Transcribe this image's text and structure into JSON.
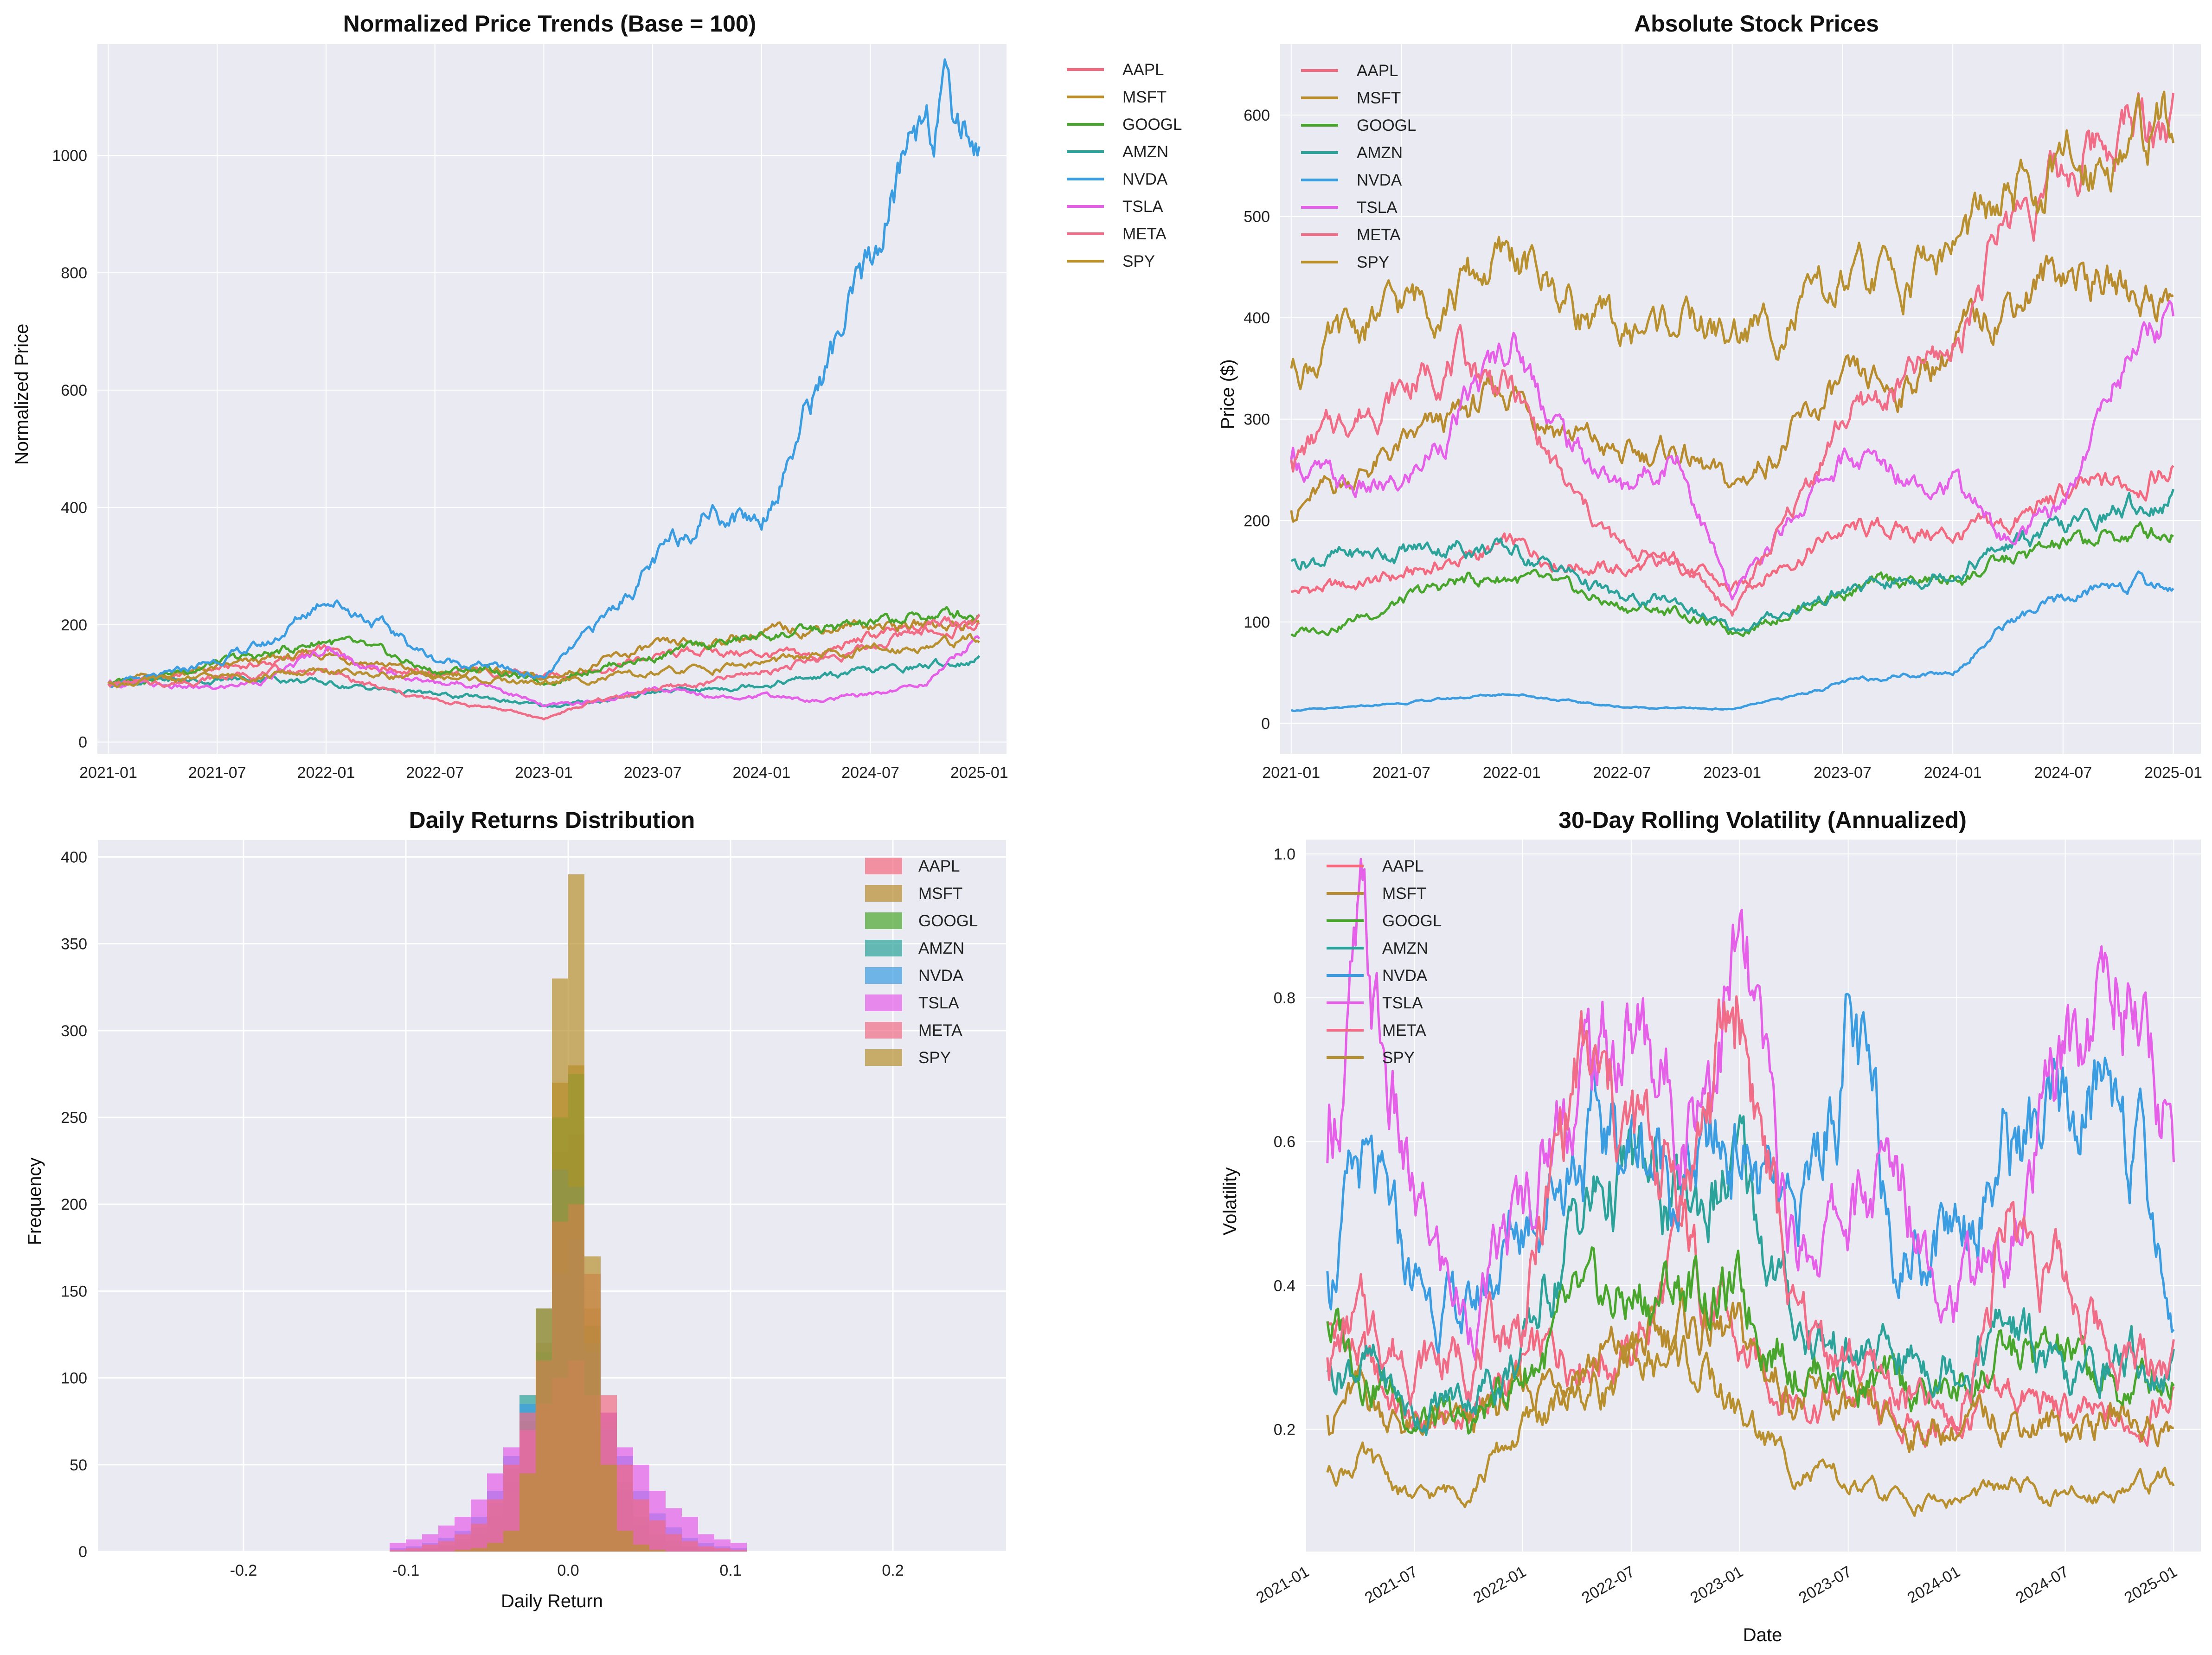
{
  "chart_data": [
    {
      "id": "normalized",
      "type": "line",
      "title": "Normalized Price Trends (Base = 100)",
      "xlabel": "",
      "ylabel": "Normalized Price",
      "x_ticks": [
        "2021-01",
        "2021-07",
        "2022-01",
        "2022-07",
        "2023-01",
        "2023-07",
        "2024-01",
        "2024-07",
        "2025-01"
      ],
      "xlim": [
        -0.1,
        8.25
      ],
      "ylim": [
        -20,
        1190
      ],
      "y_ticks": [
        0,
        200,
        400,
        600,
        800,
        1000
      ],
      "legend": "outside-right",
      "grid": true,
      "x": [
        0,
        0.5,
        1,
        1.5,
        2,
        2.5,
        3,
        3.5,
        4,
        4.5,
        5,
        5.5,
        6,
        6.5,
        7,
        7.5,
        8
      ],
      "series": [
        {
          "name": "AAPL",
          "values": [
            100,
            110,
            125,
            135,
            155,
            130,
            115,
            120,
            110,
            125,
            145,
            155,
            150,
            145,
            180,
            190,
            200
          ]
        },
        {
          "name": "MSFT",
          "values": [
            100,
            115,
            125,
            140,
            150,
            135,
            110,
            125,
            105,
            135,
            160,
            170,
            185,
            195,
            200,
            200,
            205
          ]
        },
        {
          "name": "GOOGL",
          "values": [
            100,
            115,
            135,
            150,
            175,
            150,
            120,
            125,
            100,
            130,
            145,
            165,
            180,
            190,
            200,
            215,
            220
          ]
        },
        {
          "name": "AMZN",
          "values": [
            100,
            105,
            105,
            110,
            100,
            90,
            80,
            75,
            60,
            70,
            85,
            90,
            100,
            110,
            120,
            130,
            140
          ]
        },
        {
          "name": "NVDA",
          "values": [
            100,
            110,
            140,
            170,
            250,
            200,
            140,
            130,
            110,
            200,
            300,
            400,
            380,
            600,
            800,
            1100,
            1030
          ]
        },
        {
          "name": "TSLA",
          "values": [
            100,
            95,
            90,
            110,
            160,
            120,
            100,
            100,
            60,
            70,
            90,
            80,
            80,
            70,
            80,
            100,
            180
          ]
        },
        {
          "name": "META",
          "values": [
            100,
            100,
            110,
            120,
            120,
            90,
            70,
            60,
            40,
            70,
            90,
            100,
            120,
            140,
            160,
            200,
            210
          ]
        },
        {
          "name": "SPY",
          "values": [
            100,
            105,
            110,
            115,
            120,
            115,
            110,
            105,
            100,
            110,
            115,
            125,
            135,
            145,
            155,
            165,
            175
          ]
        }
      ]
    },
    {
      "id": "absolute",
      "type": "line",
      "title": "Absolute Stock Prices",
      "xlabel": "",
      "ylabel": "Price ($)",
      "x_ticks": [
        "2021-01",
        "2021-07",
        "2022-01",
        "2022-07",
        "2023-01",
        "2023-07",
        "2024-01",
        "2024-07",
        "2025-01"
      ],
      "xlim": [
        -0.1,
        8.25
      ],
      "ylim": [
        -30,
        670
      ],
      "y_ticks": [
        0,
        100,
        200,
        300,
        400,
        500,
        600
      ],
      "legend": "top-left",
      "grid": true,
      "x": [
        0,
        0.5,
        1,
        1.5,
        2,
        2.5,
        3,
        3.5,
        4,
        4.5,
        5,
        5.5,
        6,
        6.5,
        7,
        7.5,
        8
      ],
      "series": [
        {
          "name": "AAPL",
          "values": [
            130,
            135,
            145,
            160,
            175,
            160,
            150,
            160,
            130,
            160,
            190,
            190,
            185,
            195,
            225,
            235,
            250
          ]
        },
        {
          "name": "MSFT",
          "values": [
            210,
            240,
            270,
            300,
            330,
            290,
            260,
            270,
            230,
            280,
            330,
            330,
            370,
            420,
            450,
            430,
            420
          ]
        },
        {
          "name": "GOOGL",
          "values": [
            88,
            100,
            120,
            140,
            145,
            130,
            115,
            110,
            90,
            110,
            130,
            140,
            140,
            160,
            175,
            185,
            190
          ]
        },
        {
          "name": "AMZN",
          "values": [
            160,
            165,
            170,
            175,
            170,
            150,
            120,
            120,
            90,
            110,
            130,
            140,
            150,
            175,
            190,
            210,
            220
          ]
        },
        {
          "name": "NVDA",
          "values": [
            13,
            15,
            20,
            25,
            30,
            22,
            16,
            15,
            14,
            25,
            40,
            48,
            50,
            100,
            120,
            140,
            135
          ]
        },
        {
          "name": "TSLA",
          "values": [
            260,
            230,
            230,
            300,
            380,
            280,
            230,
            270,
            120,
            200,
            260,
            250,
            240,
            180,
            210,
            350,
            410
          ]
        },
        {
          "name": "META",
          "values": [
            260,
            300,
            330,
            360,
            330,
            230,
            170,
            160,
            110,
            200,
            300,
            330,
            370,
            500,
            540,
            590,
            600
          ]
        },
        {
          "name": "SPY",
          "values": [
            350,
            380,
            410,
            430,
            460,
            420,
            380,
            400,
            380,
            400,
            430,
            440,
            470,
            510,
            540,
            570,
            590
          ]
        }
      ]
    },
    {
      "id": "returns",
      "type": "bar",
      "title": "Daily Returns Distribution",
      "xlabel": "Daily Return",
      "ylabel": "Frequency",
      "x_ticks": [
        "-0.2",
        "-0.1",
        "0.0",
        "0.1",
        "0.2"
      ],
      "x_tick_values": [
        -0.2,
        -0.1,
        0.0,
        0.1,
        0.2
      ],
      "xlim": [
        -0.29,
        0.27
      ],
      "ylim": [
        0,
        410
      ],
      "y_ticks": [
        0,
        50,
        100,
        150,
        200,
        250,
        300,
        350,
        400
      ],
      "legend": "top-right",
      "grid": true,
      "bin_width": 0.01,
      "bin_centers": [
        -0.105,
        -0.095,
        -0.085,
        -0.075,
        -0.065,
        -0.055,
        -0.045,
        -0.035,
        -0.025,
        -0.015,
        -0.005,
        0.005,
        0.015,
        0.025,
        0.035,
        0.045,
        0.055,
        0.065,
        0.075,
        0.085,
        0.095,
        0.105
      ],
      "series": [
        {
          "name": "AAPL",
          "values": [
            0,
            1,
            2,
            4,
            6,
            12,
            25,
            40,
            70,
            100,
            230,
            240,
            130,
            80,
            40,
            20,
            10,
            5,
            3,
            2,
            1,
            0
          ]
        },
        {
          "name": "MSFT",
          "values": [
            0,
            0,
            1,
            2,
            4,
            8,
            18,
            35,
            75,
            120,
            270,
            280,
            140,
            70,
            30,
            12,
            5,
            3,
            1,
            0,
            0,
            0
          ]
        },
        {
          "name": "GOOGL",
          "values": [
            0,
            1,
            2,
            3,
            5,
            10,
            20,
            40,
            75,
            115,
            250,
            275,
            130,
            75,
            35,
            15,
            7,
            3,
            2,
            1,
            0,
            0
          ]
        },
        {
          "name": "AMZN",
          "values": [
            0,
            1,
            2,
            4,
            7,
            14,
            28,
            48,
            90,
            140,
            220,
            210,
            120,
            70,
            40,
            20,
            10,
            6,
            3,
            2,
            1,
            0
          ]
        },
        {
          "name": "NVDA",
          "values": [
            2,
            3,
            5,
            8,
            12,
            20,
            35,
            55,
            85,
            110,
            160,
            180,
            115,
            80,
            55,
            35,
            22,
            14,
            8,
            5,
            3,
            2
          ]
        },
        {
          "name": "TSLA",
          "values": [
            5,
            7,
            10,
            15,
            20,
            30,
            45,
            60,
            70,
            85,
            100,
            110,
            90,
            80,
            60,
            50,
            35,
            25,
            20,
            10,
            7,
            5
          ]
        },
        {
          "name": "META",
          "values": [
            1,
            2,
            4,
            6,
            10,
            16,
            30,
            50,
            80,
            110,
            190,
            200,
            160,
            90,
            50,
            30,
            18,
            10,
            6,
            3,
            2,
            1
          ]
        },
        {
          "name": "SPY",
          "values": [
            0,
            0,
            0,
            0,
            1,
            2,
            5,
            12,
            45,
            140,
            330,
            390,
            170,
            50,
            12,
            4,
            1,
            0,
            0,
            0,
            0,
            0
          ]
        }
      ]
    },
    {
      "id": "volatility",
      "type": "line",
      "title": "30-Day Rolling Volatility (Annualized)",
      "xlabel": "Date",
      "ylabel": "Volatility",
      "x_ticks": [
        "2021-01",
        "2021-07",
        "2022-01",
        "2022-07",
        "2023-01",
        "2023-07",
        "2024-01",
        "2024-07",
        "2025-01"
      ],
      "xlim": [
        0,
        8.25
      ],
      "ylim": [
        0.03,
        1.02
      ],
      "y_ticks": [
        0.2,
        0.4,
        0.6,
        0.8,
        1.0
      ],
      "legend": "top-left",
      "grid": true,
      "x": [
        0.2,
        0.5,
        1,
        1.5,
        2,
        2.5,
        3,
        3.5,
        4,
        4.5,
        5,
        5.5,
        6,
        6.5,
        7,
        7.5,
        8
      ],
      "series": [
        {
          "name": "AAPL",
          "values": [
            0.35,
            0.3,
            0.2,
            0.22,
            0.28,
            0.32,
            0.3,
            0.45,
            0.3,
            0.25,
            0.25,
            0.2,
            0.2,
            0.25,
            0.22,
            0.2,
            0.25
          ]
        },
        {
          "name": "MSFT",
          "values": [
            0.22,
            0.25,
            0.2,
            0.2,
            0.25,
            0.3,
            0.3,
            0.35,
            0.32,
            0.25,
            0.22,
            0.2,
            0.2,
            0.22,
            0.2,
            0.22,
            0.2
          ]
        },
        {
          "name": "GOOGL",
          "values": [
            0.35,
            0.3,
            0.22,
            0.2,
            0.28,
            0.35,
            0.38,
            0.4,
            0.38,
            0.3,
            0.28,
            0.25,
            0.25,
            0.3,
            0.3,
            0.25,
            0.28
          ]
        },
        {
          "name": "AMZN",
          "values": [
            0.28,
            0.3,
            0.22,
            0.25,
            0.3,
            0.5,
            0.55,
            0.5,
            0.55,
            0.35,
            0.3,
            0.3,
            0.3,
            0.35,
            0.25,
            0.3,
            0.28
          ]
        },
        {
          "name": "NVDA",
          "values": [
            0.42,
            0.55,
            0.4,
            0.35,
            0.5,
            0.6,
            0.6,
            0.55,
            0.6,
            0.45,
            0.75,
            0.45,
            0.5,
            0.6,
            0.6,
            0.7,
            0.35
          ]
        },
        {
          "name": "TSLA",
          "values": [
            0.57,
            0.85,
            0.5,
            0.35,
            0.5,
            0.7,
            0.75,
            0.65,
            0.85,
            0.45,
            0.5,
            0.55,
            0.4,
            0.45,
            0.7,
            0.85,
            0.6
          ]
        },
        {
          "name": "META",
          "values": [
            0.3,
            0.35,
            0.3,
            0.3,
            0.35,
            0.7,
            0.6,
            0.55,
            0.8,
            0.35,
            0.3,
            0.25,
            0.2,
            0.5,
            0.4,
            0.3,
            0.3
          ]
        },
        {
          "name": "SPY",
          "values": [
            0.14,
            0.16,
            0.1,
            0.12,
            0.2,
            0.25,
            0.28,
            0.3,
            0.22,
            0.15,
            0.12,
            0.1,
            0.1,
            0.12,
            0.1,
            0.12,
            0.13
          ]
        }
      ]
    }
  ],
  "colors": {
    "AAPL": "#f3697f",
    "MSFT": "#b88b2c",
    "GOOGL": "#48a62c",
    "AMZN": "#2ba39a",
    "NVDA": "#3b9de1",
    "TSLA": "#e55fe9",
    "META": "#f16c86",
    "SPY": "#b8902e",
    "axes_bg": "#eaeaf2",
    "grid": "#ffffff",
    "hist_bg": "#ffffff",
    "hist_grid": "#d9d9d9"
  }
}
